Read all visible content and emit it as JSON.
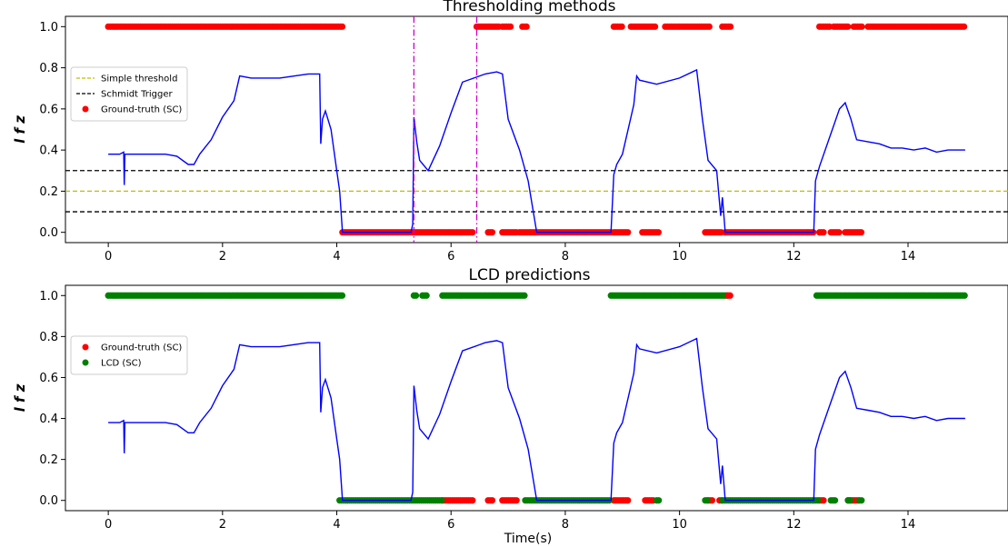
{
  "figure": {
    "xlabel": "Time(s)"
  },
  "colors": {
    "signal": "#0000ff",
    "ground_truth": "#ff0000",
    "lcd": "#008000",
    "simple_threshold": "#bfbf00",
    "schmidt": "#000000",
    "event": "#cc00cc"
  },
  "chart_data": [
    {
      "type": "line",
      "title": "Thresholding methods",
      "ylabel": "l f z",
      "xlim": [
        -0.75,
        15.75
      ],
      "ylim": [
        -0.05,
        1.05
      ],
      "xticks": [
        0,
        2,
        4,
        6,
        8,
        10,
        12,
        14
      ],
      "yticks": [
        0.0,
        0.2,
        0.4,
        0.6,
        0.8,
        1.0
      ],
      "legend": {
        "position": "upper-left",
        "entries": [
          {
            "label": "Simple threshold",
            "style": "dashed",
            "color": "#bfbf00"
          },
          {
            "label": "Schmidt Trigger",
            "style": "dashed",
            "color": "#000000"
          },
          {
            "label": "Ground-truth (SC)",
            "style": "dot",
            "color": "#ff0000"
          }
        ]
      },
      "hlines": [
        {
          "y": 0.3,
          "color": "#000000",
          "style": "dashed"
        },
        {
          "y": 0.2,
          "color": "#bfbf00",
          "style": "dashed"
        },
        {
          "y": 0.1,
          "color": "#000000",
          "style": "dashed"
        }
      ],
      "vlines": [
        {
          "x": 5.35,
          "color": "#cc00cc",
          "style": "dashdot"
        },
        {
          "x": 6.45,
          "color": "#cc00cc",
          "style": "dashdot"
        }
      ],
      "signal": {
        "name": "",
        "x": [
          0,
          0.1,
          0.2,
          0.27,
          0.28,
          0.29,
          0.3,
          0.4,
          0.6,
          0.8,
          1.0,
          1.2,
          1.4,
          1.5,
          1.6,
          1.8,
          2.0,
          2.2,
          2.3,
          2.5,
          3.0,
          3.5,
          3.7,
          3.72,
          3.75,
          3.8,
          3.9,
          4.0,
          4.05,
          4.1,
          4.12,
          5.3,
          5.33,
          5.35,
          5.4,
          5.45,
          5.6,
          5.8,
          6.0,
          6.2,
          6.5,
          6.6,
          6.8,
          6.9,
          7.0,
          7.2,
          7.35,
          7.5,
          8.8,
          8.85,
          8.9,
          9.0,
          9.2,
          9.25,
          9.3,
          9.6,
          10.0,
          10.3,
          10.4,
          10.5,
          10.65,
          10.72,
          10.75,
          10.8,
          10.85,
          10.95,
          11.0,
          12.35,
          12.38,
          12.45,
          12.6,
          12.8,
          12.9,
          13.0,
          13.1,
          13.3,
          13.5,
          13.7,
          13.9,
          14.1,
          14.3,
          14.5,
          14.7,
          14.9,
          15.0
        ],
        "y": [
          0.38,
          0.38,
          0.38,
          0.39,
          0.23,
          0.38,
          0.38,
          0.38,
          0.38,
          0.38,
          0.38,
          0.37,
          0.33,
          0.33,
          0.38,
          0.45,
          0.56,
          0.64,
          0.76,
          0.75,
          0.75,
          0.77,
          0.77,
          0.43,
          0.55,
          0.59,
          0.5,
          0.3,
          0.2,
          0.0,
          0.0,
          0.0,
          0.04,
          0.56,
          0.44,
          0.35,
          0.3,
          0.42,
          0.58,
          0.73,
          0.76,
          0.77,
          0.78,
          0.77,
          0.55,
          0.4,
          0.25,
          0.0,
          0.0,
          0.28,
          0.33,
          0.38,
          0.62,
          0.76,
          0.74,
          0.72,
          0.75,
          0.79,
          0.55,
          0.35,
          0.3,
          0.08,
          0.17,
          0.0,
          0.0,
          0.0,
          0.0,
          0.0,
          0.25,
          0.32,
          0.44,
          0.6,
          0.63,
          0.55,
          0.45,
          0.44,
          0.43,
          0.41,
          0.41,
          0.4,
          0.41,
          0.39,
          0.4,
          0.4,
          0.4
        ]
      },
      "ground_truth_ones": [
        [
          0.0,
          4.1
        ],
        [
          6.45,
          6.85
        ],
        [
          6.9,
          7.05
        ],
        [
          7.25,
          7.35
        ],
        [
          8.85,
          9.0
        ],
        [
          9.15,
          9.6
        ],
        [
          9.75,
          10.55
        ],
        [
          10.75,
          10.9
        ],
        [
          12.45,
          12.65
        ],
        [
          12.7,
          12.95
        ],
        [
          13.05,
          13.2
        ],
        [
          13.3,
          15.0
        ]
      ],
      "ground_truth_zeros": [
        [
          4.1,
          6.4
        ],
        [
          6.65,
          6.75
        ],
        [
          6.9,
          7.15
        ],
        [
          7.2,
          7.4
        ],
        [
          7.4,
          8.8
        ],
        [
          8.85,
          9.1
        ],
        [
          9.35,
          9.65
        ],
        [
          10.45,
          10.75
        ],
        [
          10.8,
          12.35
        ],
        [
          12.45,
          12.55
        ],
        [
          12.65,
          12.8
        ],
        [
          12.9,
          13.2
        ]
      ]
    },
    {
      "type": "line",
      "title": "LCD predictions",
      "ylabel": "l f z",
      "xlabel": "Time(s)",
      "xlim": [
        -0.75,
        15.75
      ],
      "ylim": [
        -0.05,
        1.05
      ],
      "xticks": [
        0,
        2,
        4,
        6,
        8,
        10,
        12,
        14
      ],
      "yticks": [
        0.0,
        0.2,
        0.4,
        0.6,
        0.8,
        1.0
      ],
      "legend": {
        "position": "upper-left",
        "entries": [
          {
            "label": "Ground-truth (SC)",
            "style": "dot",
            "color": "#ff0000"
          },
          {
            "label": "LCD (SC)",
            "style": "dot",
            "color": "#008000"
          }
        ]
      },
      "ground_truth_ones": [
        [
          10.85,
          10.9
        ]
      ],
      "ground_truth_zeros": [
        [
          5.85,
          6.4
        ],
        [
          6.65,
          6.75
        ],
        [
          6.9,
          7.15
        ],
        [
          8.85,
          9.1
        ],
        [
          9.4,
          9.55
        ],
        [
          10.5,
          10.6
        ],
        [
          10.7,
          10.75
        ],
        [
          12.45,
          12.55
        ],
        [
          12.95,
          13.15
        ]
      ],
      "lcd_ones": [
        [
          0.0,
          4.1
        ],
        [
          5.35,
          5.4
        ],
        [
          5.5,
          5.6
        ],
        [
          5.85,
          7.3
        ],
        [
          8.8,
          10.85
        ],
        [
          12.4,
          15.0
        ]
      ],
      "lcd_zeros": [
        [
          4.05,
          5.85
        ],
        [
          7.3,
          8.8
        ],
        [
          9.6,
          9.65
        ],
        [
          10.45,
          10.5
        ],
        [
          10.75,
          12.35
        ],
        [
          12.35,
          12.45
        ],
        [
          12.65,
          12.75
        ],
        [
          12.95,
          13.0
        ],
        [
          13.15,
          13.2
        ]
      ]
    }
  ]
}
